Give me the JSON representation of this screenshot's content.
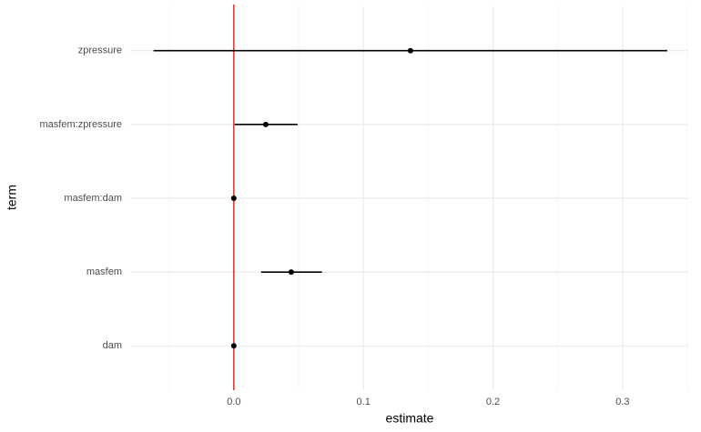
{
  "chart_data": {
    "type": "pointrange",
    "x_label": "estimate",
    "y_label": "term",
    "categories": [
      "dam",
      "masfem",
      "masfem:dam",
      "masfem:zpressure",
      "zpressure"
    ],
    "values": [
      0.0,
      0.0443,
      0.0,
      0.0246,
      0.1363
    ],
    "lower": [
      -0.0005,
      0.021,
      -0.0005,
      0.0007,
      -0.062
    ],
    "upper": [
      0.0005,
      0.068,
      0.0005,
      0.0492,
      0.3345
    ],
    "color": "#000000",
    "xlim": [
      -0.08,
      0.35
    ],
    "xticks": [
      {
        "value": 0,
        "label": "0.0"
      },
      0.1,
      0.2,
      0.3
    ],
    "minor_xticks": [
      -0.05,
      0.05,
      0.15,
      0.25,
      0.35
    ],
    "ref_line": 0,
    "ref_color": "#e31a1c",
    "grid": true
  }
}
